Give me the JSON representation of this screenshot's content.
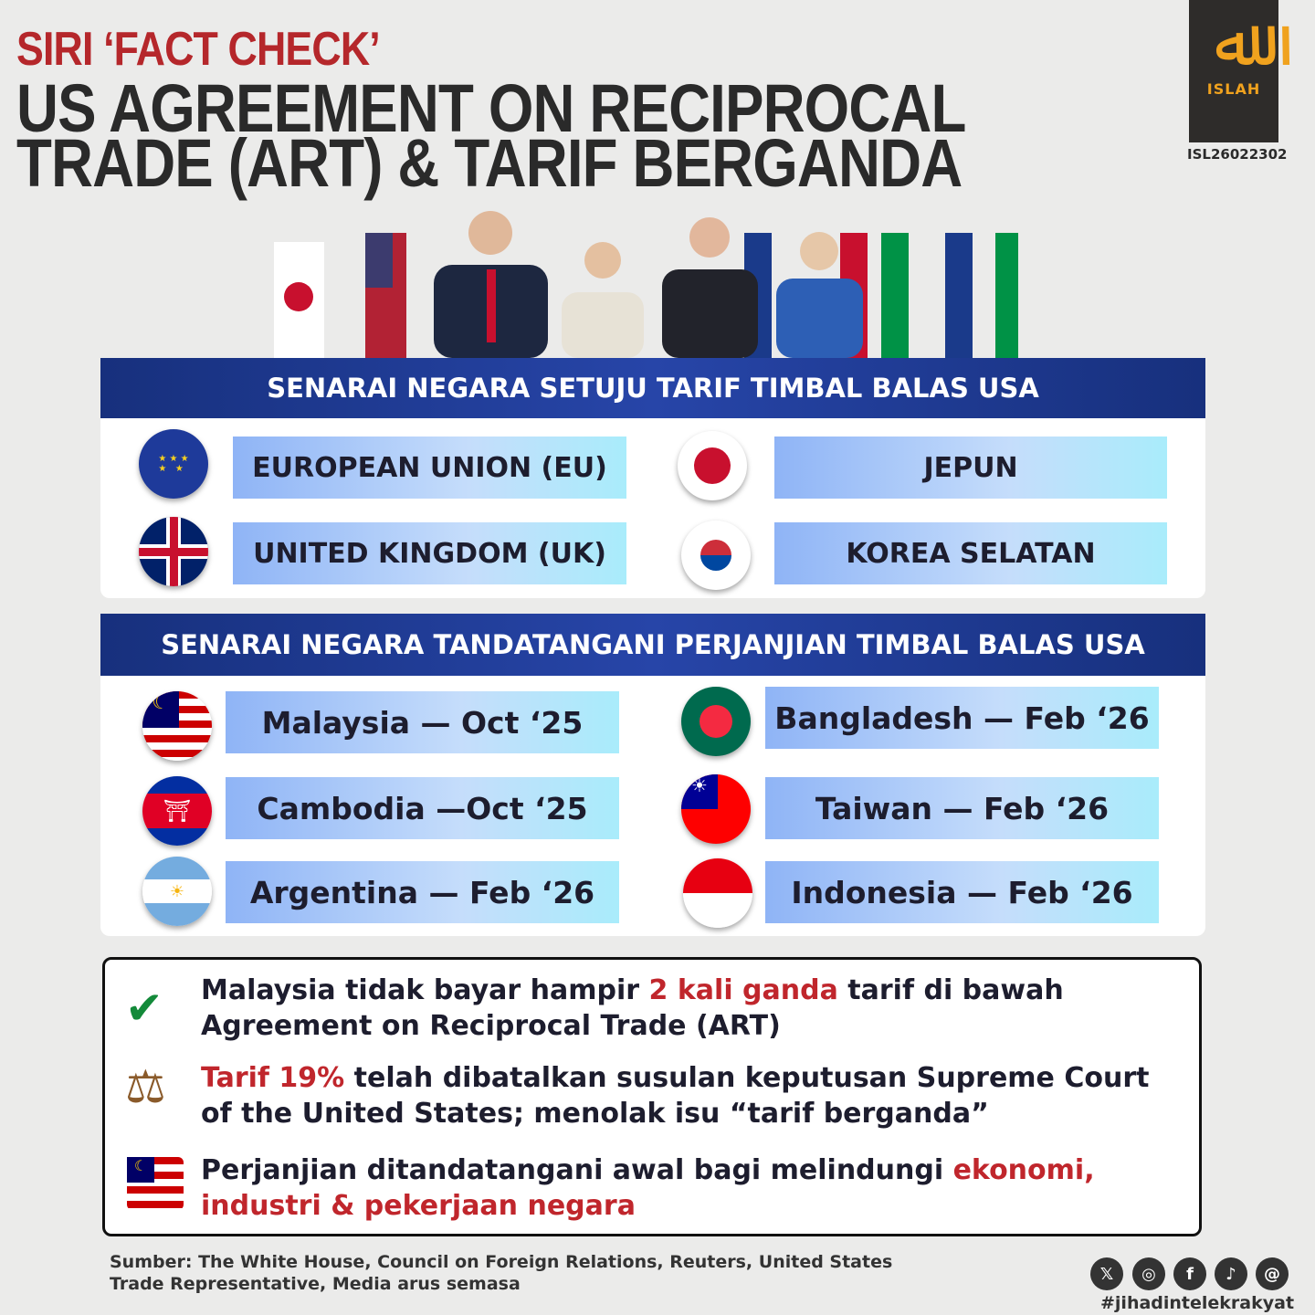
{
  "header": {
    "series": "SIRI ‘FACT CHECK’",
    "title_line1": "US AGREEMENT ON RECIPROCAL",
    "title_line2": "TRADE (ART) & TARIF BERGANDA"
  },
  "logo": {
    "name": "ISLAH",
    "code": "ISL26022302"
  },
  "section1": {
    "title": "SENARAI NEGARA SETUJU TARIF TIMBAL BALAS USA",
    "items": [
      {
        "label": "EUROPEAN UNION (EU)",
        "flag": "eu"
      },
      {
        "label": "JEPUN",
        "flag": "japan"
      },
      {
        "label": "UNITED KINGDOM (UK)",
        "flag": "uk"
      },
      {
        "label": "KOREA SELATAN",
        "flag": "south-korea"
      }
    ]
  },
  "section2": {
    "title": "SENARAI NEGARA TANDATANGANI PERJANJIAN TIMBAL BALAS USA",
    "items": [
      {
        "label": "Malaysia — Oct ‘25",
        "flag": "malaysia"
      },
      {
        "label": "Bangladesh — Feb ‘26",
        "flag": "bangladesh"
      },
      {
        "label": "Cambodia —Oct ‘25",
        "flag": "cambodia"
      },
      {
        "label": "Taiwan — Feb ‘26",
        "flag": "taiwan"
      },
      {
        "label": "Argentina — Feb ‘26",
        "flag": "argentina"
      },
      {
        "label": "Indonesia — Feb ‘26",
        "flag": "indonesia"
      }
    ]
  },
  "points": [
    {
      "icon": "check-icon",
      "a": "Malaysia tidak bayar hampir ",
      "b": "2 kali ganda",
      "c": " tarif di bawah",
      "d": "Agreement on Reciprocal Trade (ART)"
    },
    {
      "icon": "scales-icon",
      "a": "Tarif 19%",
      "b": " telah dibatalkan susulan keputusan Supreme Court",
      "c": "of the United States; menolak isu “tarif berganda”"
    },
    {
      "icon": "malaysia-flag-icon",
      "a": "Perjanjian ditandatangani awal bagi melindungi ",
      "b": "ekonomi,",
      "c": "industri & pekerjaan negara"
    }
  ],
  "footer": {
    "source_line1": "Sumber: The White House, Council on Foreign Relations, Reuters, United States",
    "source_line2": "Trade Representative, Media arus semasa",
    "hashtag": "#jihadintelekrakyat",
    "social": [
      "x-icon",
      "instagram-icon",
      "facebook-icon",
      "tiktok-icon",
      "threads-icon"
    ]
  },
  "colors": {
    "accent_red": "#b5272b",
    "bar_blue": "#1e3a8f"
  }
}
